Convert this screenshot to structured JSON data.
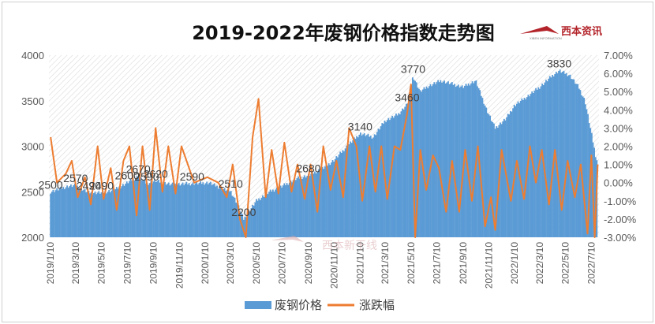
{
  "chart_data": {
    "type": "bar+line",
    "title": "2019-2022年废钢价格指数走势图",
    "legend": {
      "position": "bottom",
      "entries": [
        "废钢价格",
        "涨跌幅"
      ]
    },
    "colors": {
      "bars": "#5b9bd5",
      "line": "#ed7d31",
      "hatch": "#d9d9d9"
    },
    "y_left": {
      "min": 2000,
      "max": 4000,
      "ticks": [
        "2000",
        "2500",
        "3000",
        "3500",
        "4000"
      ]
    },
    "y_right": {
      "min": -3,
      "max": 7,
      "ticks": [
        "-3.00%",
        "-2.00%",
        "-1.00%",
        "0.00%",
        "1.00%",
        "2.00%",
        "3.00%",
        "4.00%",
        "5.00%",
        "6.00%",
        "7.00%"
      ]
    },
    "x_ticks": [
      "2019/1/10",
      "2019/3/10",
      "2019/5/10",
      "2019/7/10",
      "2019/9/10",
      "2019/11/10",
      "2020/1/10",
      "2020/3/10",
      "2020/5/10",
      "2020/7/10",
      "2020/9/10",
      "2020/11/10",
      "2021/1/10",
      "2021/3/10",
      "2021/5/10",
      "2021/7/10",
      "2021/9/10",
      "2021/11/10",
      "2022/1/10",
      "2022/3/10",
      "2022/5/10",
      "2022/7/10"
    ],
    "price_anchors": [
      [
        "2019-01-10",
        2500
      ],
      [
        "2019-02-20",
        2560
      ],
      [
        "2019-03-10",
        2570
      ],
      [
        "2019-04-10",
        2490
      ],
      [
        "2019-05-10",
        2490
      ],
      [
        "2019-06-10",
        2520
      ],
      [
        "2019-07-10",
        2600
      ],
      [
        "2019-08-05",
        2670
      ],
      [
        "2019-08-25",
        2590
      ],
      [
        "2019-09-15",
        2620
      ],
      [
        "2019-10-20",
        2580
      ],
      [
        "2019-12-10",
        2590
      ],
      [
        "2020-01-20",
        2600
      ],
      [
        "2020-02-20",
        2530
      ],
      [
        "2020-03-10",
        2510
      ],
      [
        "2020-03-25",
        2380
      ],
      [
        "2020-04-10",
        2200
      ],
      [
        "2020-05-10",
        2400
      ],
      [
        "2020-06-10",
        2500
      ],
      [
        "2020-07-10",
        2560
      ],
      [
        "2020-08-10",
        2640
      ],
      [
        "2020-09-10",
        2680
      ],
      [
        "2020-10-15",
        2760
      ],
      [
        "2020-11-10",
        2850
      ],
      [
        "2020-12-10",
        3000
      ],
      [
        "2021-01-10",
        3140
      ],
      [
        "2021-02-10",
        3100
      ],
      [
        "2021-03-10",
        3280
      ],
      [
        "2021-04-10",
        3350
      ],
      [
        "2021-05-01",
        3460
      ],
      [
        "2021-05-15",
        3770
      ],
      [
        "2021-06-01",
        3600
      ],
      [
        "2021-06-20",
        3660
      ],
      [
        "2021-07-20",
        3720
      ],
      [
        "2021-09-10",
        3650
      ],
      [
        "2021-10-10",
        3720
      ],
      [
        "2021-11-05",
        3400
      ],
      [
        "2021-11-25",
        3200
      ],
      [
        "2021-12-20",
        3300
      ],
      [
        "2022-01-10",
        3450
      ],
      [
        "2022-02-10",
        3550
      ],
      [
        "2022-03-10",
        3650
      ],
      [
        "2022-04-10",
        3780
      ],
      [
        "2022-04-25",
        3830
      ],
      [
        "2022-05-20",
        3780
      ],
      [
        "2022-06-10",
        3650
      ],
      [
        "2022-06-25",
        3500
      ],
      [
        "2022-07-10",
        3150
      ],
      [
        "2022-07-22",
        2850
      ]
    ],
    "change_points": [
      [
        "2019-01-10",
        2.5
      ],
      [
        "2019-01-25",
        0.0
      ],
      [
        "2019-02-15",
        0.5
      ],
      [
        "2019-03-01",
        1.2
      ],
      [
        "2019-03-15",
        -0.8
      ],
      [
        "2019-04-01",
        0.3
      ],
      [
        "2019-04-15",
        -1.2
      ],
      [
        "2019-05-01",
        2.0
      ],
      [
        "2019-05-15",
        -0.9
      ],
      [
        "2019-06-01",
        0.8
      ],
      [
        "2019-06-15",
        -1.5
      ],
      [
        "2019-07-01",
        1.2
      ],
      [
        "2019-07-15",
        2.0
      ],
      [
        "2019-08-01",
        -1.8
      ],
      [
        "2019-08-15",
        2.0
      ],
      [
        "2019-09-01",
        -1.5
      ],
      [
        "2019-09-15",
        3.0
      ],
      [
        "2019-10-01",
        -0.5
      ],
      [
        "2019-10-15",
        2.0
      ],
      [
        "2019-11-01",
        -0.6
      ],
      [
        "2019-11-15",
        2.0
      ],
      [
        "2019-12-15",
        0.0
      ],
      [
        "2020-01-15",
        0.3
      ],
      [
        "2020-02-10",
        0.0
      ],
      [
        "2020-03-01",
        -0.8
      ],
      [
        "2020-03-15",
        1.0
      ],
      [
        "2020-04-01",
        -2.0
      ],
      [
        "2020-04-15",
        -3.0
      ],
      [
        "2020-05-01",
        2.5
      ],
      [
        "2020-05-15",
        4.6
      ],
      [
        "2020-06-01",
        -0.8
      ],
      [
        "2020-06-15",
        1.8
      ],
      [
        "2020-07-01",
        -0.6
      ],
      [
        "2020-07-15",
        2.2
      ],
      [
        "2020-08-01",
        -0.5
      ],
      [
        "2020-08-15",
        1.0
      ],
      [
        "2020-09-01",
        -0.9
      ],
      [
        "2020-09-15",
        1.0
      ],
      [
        "2020-10-01",
        -1.6
      ],
      [
        "2020-10-15",
        2.0
      ],
      [
        "2020-11-01",
        -0.4
      ],
      [
        "2020-11-15",
        1.2
      ],
      [
        "2020-12-01",
        -0.8
      ],
      [
        "2020-12-15",
        3.0
      ],
      [
        "2021-01-01",
        2.0
      ],
      [
        "2021-01-15",
        -1.0
      ],
      [
        "2021-02-01",
        2.0
      ],
      [
        "2021-02-15",
        -0.5
      ],
      [
        "2021-03-01",
        2.0
      ],
      [
        "2021-03-15",
        -0.9
      ],
      [
        "2021-04-01",
        2.0
      ],
      [
        "2021-04-15",
        1.8
      ],
      [
        "2021-05-01",
        3.8
      ],
      [
        "2021-05-10",
        5.4
      ],
      [
        "2021-05-20",
        -3.0
      ],
      [
        "2021-06-01",
        1.8
      ],
      [
        "2021-06-15",
        -0.4
      ],
      [
        "2021-07-01",
        1.5
      ],
      [
        "2021-07-15",
        0.8
      ],
      [
        "2021-08-01",
        -1.6
      ],
      [
        "2021-08-15",
        1.2
      ],
      [
        "2021-09-01",
        -1.6
      ],
      [
        "2021-09-15",
        1.8
      ],
      [
        "2021-10-01",
        -1.0
      ],
      [
        "2021-10-15",
        2.0
      ],
      [
        "2021-11-01",
        -2.4
      ],
      [
        "2021-11-15",
        -0.8
      ],
      [
        "2021-11-25",
        -2.6
      ],
      [
        "2021-12-10",
        1.8
      ],
      [
        "2022-01-01",
        -1.0
      ],
      [
        "2022-01-15",
        1.2
      ],
      [
        "2022-02-01",
        -0.9
      ],
      [
        "2022-02-15",
        2.0
      ],
      [
        "2022-03-01",
        0.0
      ],
      [
        "2022-03-15",
        1.8
      ],
      [
        "2022-04-01",
        -1.2
      ],
      [
        "2022-04-15",
        1.8
      ],
      [
        "2022-05-01",
        -1.5
      ],
      [
        "2022-05-15",
        1.2
      ],
      [
        "2022-06-01",
        -0.8
      ],
      [
        "2022-06-15",
        1.0
      ],
      [
        "2022-07-01",
        -2.8
      ],
      [
        "2022-07-10",
        1.5
      ],
      [
        "2022-07-18",
        -3.0
      ],
      [
        "2022-07-25",
        1.0
      ]
    ],
    "annotations": [
      {
        "date": "2019-01-10",
        "value": 2500,
        "label": "2500"
      },
      {
        "date": "2019-03-10",
        "value": 2570,
        "label": "2570"
      },
      {
        "date": "2019-04-10",
        "value": 2490,
        "label": "2490"
      },
      {
        "date": "2019-05-10",
        "value": 2490,
        "label": "2490"
      },
      {
        "date": "2019-07-10",
        "value": 2600,
        "label": "2600"
      },
      {
        "date": "2019-08-05",
        "value": 2670,
        "label": "2670"
      },
      {
        "date": "2019-08-25",
        "value": 2590,
        "label": "2590"
      },
      {
        "date": "2019-09-15",
        "value": 2620,
        "label": "2620"
      },
      {
        "date": "2019-12-10",
        "value": 2590,
        "label": "2590"
      },
      {
        "date": "2020-03-10",
        "value": 2510,
        "label": "2510"
      },
      {
        "date": "2020-04-10",
        "value": 2200,
        "label": "2200"
      },
      {
        "date": "2020-09-10",
        "value": 2680,
        "label": "2680"
      },
      {
        "date": "2021-01-10",
        "value": 3140,
        "label": "3140"
      },
      {
        "date": "2021-05-01",
        "value": 3460,
        "label": "3460"
      },
      {
        "date": "2021-05-15",
        "value": 3770,
        "label": "3770"
      },
      {
        "date": "2022-04-25",
        "value": 3830,
        "label": "3830"
      }
    ]
  },
  "logo": {
    "name": "西本资讯",
    "sub": "XIBEN INFORMATION"
  },
  "watermark": {
    "text": "西本新干线"
  }
}
